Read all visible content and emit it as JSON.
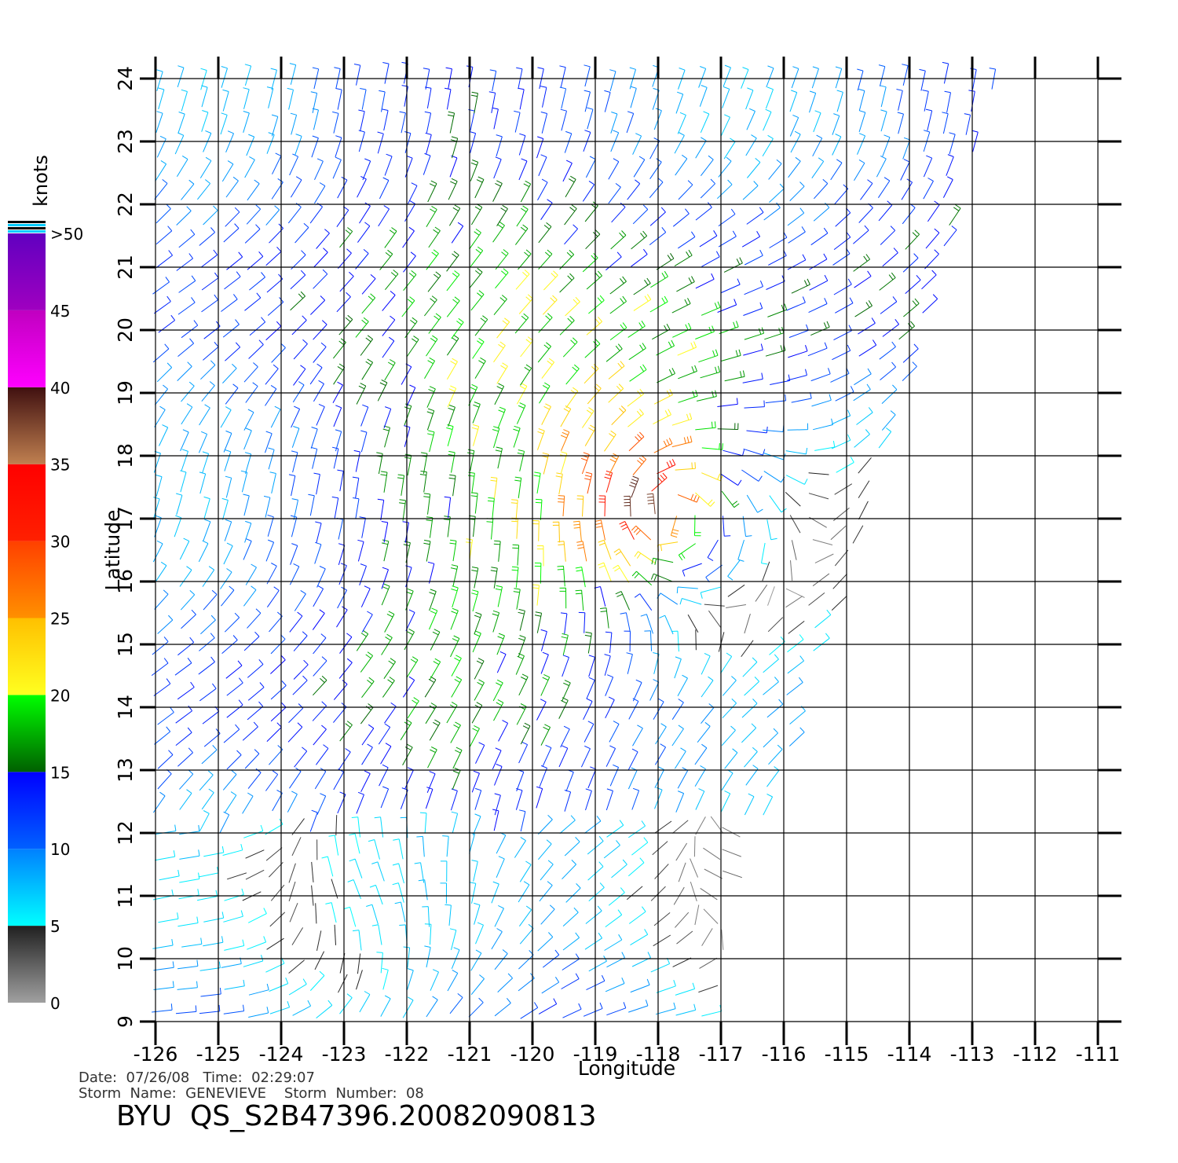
{
  "map": {
    "x_label": "Longitude",
    "y_label": "Latitude",
    "xlim": [
      -126,
      -110.625
    ],
    "ylim": [
      9,
      24
    ],
    "xticks": [
      -126,
      -125,
      -124,
      -123,
      -122,
      -121,
      -120,
      -119,
      -118,
      -117,
      -116,
      -115,
      -114,
      -113,
      -112,
      -111
    ],
    "yticks": [
      9,
      10,
      11,
      12,
      13,
      14,
      15,
      16,
      17,
      18,
      19,
      20,
      21,
      22,
      23,
      24
    ],
    "grid": true
  },
  "colorbar": {
    "title": "knots",
    "lim": [
      0,
      50
    ],
    "ticks": [
      0,
      5,
      10,
      15,
      20,
      25,
      30,
      35,
      40,
      45,
      {
        "value": 50,
        "label": ">50"
      }
    ],
    "bands": [
      [
        "#a0a0a0",
        "#202020"
      ],
      [
        "#00ffff",
        "#0080ff"
      ],
      [
        "#0060ff",
        "#0000ff"
      ],
      [
        "#006000",
        "#00ff00"
      ],
      [
        "#ffff20",
        "#ffc000"
      ],
      [
        "#ff9000",
        "#ff4000"
      ],
      [
        "#ff2000",
        "#ff0000"
      ],
      [
        "#c08050",
        "#401010"
      ],
      [
        "#ff00ff",
        "#c000c0"
      ],
      [
        "#a000c0",
        "#6000c0"
      ]
    ]
  },
  "footer": {
    "line1": "Date:  07/26/08   Time:  02:29:07",
    "line2": "Storm  Name:  GENEVIEVE    Storm  Number:  08",
    "product": "BYU  QS_S2B47396.20082090813"
  }
}
